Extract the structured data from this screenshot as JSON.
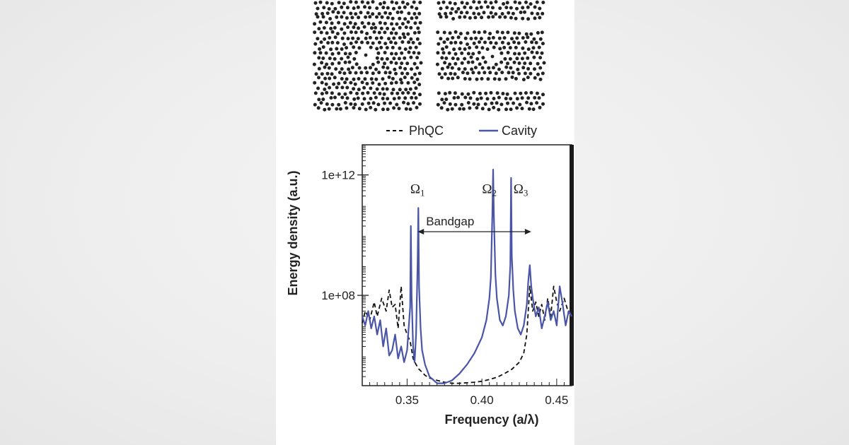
{
  "chart_data": {
    "type": "line",
    "xlabel": "Frequency (a/λ)",
    "ylabel": "Energy density (a.u.)",
    "xlim": [
      0.32,
      0.46
    ],
    "y_scale": "log",
    "ylim": [
      100000.0,
      10000000000000.0
    ],
    "x_ticks": [
      {
        "value": 0.35,
        "label": "0.35"
      },
      {
        "value": 0.4,
        "label": "0.40"
      },
      {
        "value": 0.45,
        "label": "0.45"
      }
    ],
    "y_ticks": [
      {
        "value": 100000000.0,
        "label": "1e+08"
      },
      {
        "value": 1000000000000.0,
        "label": "1e+12"
      }
    ],
    "legend": {
      "placement": "top",
      "entries": [
        "PhQC",
        "Cavity"
      ]
    },
    "series": [
      {
        "name": "PhQC",
        "style": "dashed",
        "color": "#111111",
        "x": [
          0.32,
          0.322,
          0.325,
          0.328,
          0.33,
          0.333,
          0.336,
          0.338,
          0.34,
          0.342,
          0.344,
          0.346,
          0.348,
          0.35,
          0.352,
          0.354,
          0.356,
          0.358,
          0.36,
          0.362,
          0.365,
          0.37,
          0.375,
          0.38,
          0.385,
          0.39,
          0.395,
          0.4,
          0.405,
          0.41,
          0.415,
          0.42,
          0.425,
          0.428,
          0.43,
          0.432,
          0.434,
          0.436,
          0.438,
          0.44,
          0.442,
          0.444,
          0.446,
          0.448,
          0.45,
          0.452,
          0.455,
          0.458,
          0.46
        ],
        "y": [
          12000000.0,
          30000000.0,
          15000000.0,
          60000000.0,
          20000000.0,
          80000000.0,
          30000000.0,
          150000000.0,
          40000000.0,
          50000000.0,
          8000000.0,
          200000000.0,
          10000000.0,
          5000000.0,
          3000000.0,
          800000.0,
          500000.0,
          350000.0,
          280000.0,
          220000.0,
          180000.0,
          150000.0,
          130000.0,
          120000.0,
          120000.0,
          125000.0,
          130000.0,
          140000.0,
          160000.0,
          190000.0,
          250000.0,
          350000.0,
          600000.0,
          1200000.0,
          5000000.0,
          200000000.0,
          30000000.0,
          60000000.0,
          20000000.0,
          50000000.0,
          15000000.0,
          80000000.0,
          20000000.0,
          200000000.0,
          60000000.0,
          30000000.0,
          80000000.0,
          25000000.0,
          40000000.0
        ]
      },
      {
        "name": "Cavity",
        "style": "solid",
        "color": "#4a55a8",
        "x": [
          0.32,
          0.322,
          0.324,
          0.326,
          0.328,
          0.33,
          0.332,
          0.334,
          0.336,
          0.338,
          0.34,
          0.342,
          0.344,
          0.346,
          0.348,
          0.35,
          0.352,
          0.3525,
          0.353,
          0.354,
          0.355,
          0.356,
          0.357,
          0.3575,
          0.358,
          0.359,
          0.36,
          0.362,
          0.365,
          0.37,
          0.375,
          0.38,
          0.385,
          0.39,
          0.395,
          0.4,
          0.403,
          0.405,
          0.406,
          0.407,
          0.4075,
          0.408,
          0.409,
          0.41,
          0.412,
          0.414,
          0.416,
          0.418,
          0.419,
          0.4195,
          0.42,
          0.421,
          0.422,
          0.424,
          0.426,
          0.428,
          0.43,
          0.431,
          0.432,
          0.433,
          0.434,
          0.436,
          0.438,
          0.44,
          0.442,
          0.444,
          0.446,
          0.448,
          0.45,
          0.452,
          0.454,
          0.456,
          0.458,
          0.46
        ],
        "y": [
          20000000.0,
          10000000.0,
          30000000.0,
          8000000.0,
          20000000.0,
          5000000.0,
          15000000.0,
          2000000.0,
          8000000.0,
          1000000.0,
          1500000.0,
          5000000.0,
          800000.0,
          2000000.0,
          600000.0,
          1500000.0,
          40000000.0,
          20000000000.0,
          100000000.0,
          2000000.0,
          600000.0,
          5000000.0,
          1000000000.0,
          80000000000.0,
          200000000.0,
          8000000.0,
          1500000.0,
          500000.0,
          200000.0,
          120000.0,
          120000.0,
          150000.0,
          250000.0,
          500000.0,
          1200000.0,
          4000000.0,
          15000000.0,
          80000000.0,
          400000000.0,
          50000000000.0,
          1500000000000.0,
          40000000000.0,
          500000000.0,
          80000000.0,
          15000000.0,
          10000000.0,
          20000000.0,
          100000000.0,
          1000000000.0,
          800000000000.0,
          2000000000.0,
          150000000.0,
          30000000.0,
          8000000.0,
          5000000.0,
          10000000.0,
          50000000.0,
          300000000.0,
          1000000000.0,
          200000000.0,
          80000000.0,
          20000000.0,
          40000000.0,
          8000000.0,
          20000000.0,
          60000000.0,
          15000000.0,
          30000000.0,
          10000000.0,
          200000000.0,
          50000000.0,
          10000000.0,
          30000000.0,
          20000000.0
        ]
      }
    ],
    "annotations": [
      {
        "base": "Ω",
        "sub": "1",
        "x": 0.357,
        "y": 250000000000.0
      },
      {
        "base": "Ω",
        "sub": "2",
        "x": 0.405,
        "y": 250000000000.0
      },
      {
        "base": "Ω",
        "sub": "3",
        "x": 0.426,
        "y": 250000000000.0
      }
    ],
    "bandgap": {
      "label": "Bandgap",
      "x_start": 0.357,
      "x_end": 0.433,
      "y": 13000000000.0
    }
  }
}
